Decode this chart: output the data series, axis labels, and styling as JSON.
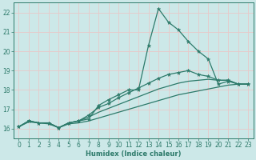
{
  "title": "",
  "xlabel": "Humidex (Indice chaleur)",
  "ylabel": "",
  "bg_color": "#cce8e8",
  "line_color": "#2d7a6a",
  "grid_color": "#e8f5f5",
  "xlim": [
    -0.5,
    23.5
  ],
  "ylim": [
    15.5,
    22.5
  ],
  "xticks": [
    0,
    1,
    2,
    3,
    4,
    5,
    6,
    7,
    8,
    9,
    10,
    11,
    12,
    13,
    14,
    15,
    16,
    17,
    18,
    19,
    20,
    21,
    22,
    23
  ],
  "yticks": [
    16,
    17,
    18,
    19,
    20,
    21,
    22
  ],
  "lines": [
    {
      "x": [
        0,
        1,
        2,
        3,
        4,
        5,
        6,
        7,
        8,
        9,
        10,
        11,
        12,
        13,
        14,
        15,
        16,
        17,
        18,
        19,
        20,
        21,
        22,
        23
      ],
      "y": [
        16.1,
        16.4,
        16.3,
        16.3,
        16.05,
        16.3,
        16.4,
        16.5,
        17.2,
        17.5,
        17.75,
        18.0,
        18.0,
        20.3,
        22.2,
        21.5,
        21.1,
        20.5,
        20.0,
        19.6,
        18.3,
        18.45,
        18.3,
        18.3
      ],
      "marker": true
    },
    {
      "x": [
        0,
        1,
        2,
        3,
        4,
        5,
        6,
        7,
        8,
        9,
        10,
        11,
        12,
        13,
        14,
        15,
        16,
        17,
        18,
        19,
        20,
        21,
        22,
        23
      ],
      "y": [
        16.1,
        16.4,
        16.3,
        16.3,
        16.05,
        16.3,
        16.4,
        16.7,
        17.1,
        17.3,
        17.6,
        17.85,
        18.1,
        18.35,
        18.6,
        18.8,
        18.9,
        19.0,
        18.8,
        18.7,
        18.5,
        18.5,
        18.3,
        18.3
      ],
      "marker": true
    },
    {
      "x": [
        0,
        1,
        2,
        3,
        4,
        5,
        6,
        7,
        8,
        9,
        10,
        11,
        12,
        13,
        14,
        15,
        16,
        17,
        18,
        19,
        20,
        21,
        22,
        23
      ],
      "y": [
        16.1,
        16.4,
        16.3,
        16.3,
        16.05,
        16.3,
        16.4,
        16.6,
        16.85,
        17.05,
        17.25,
        17.45,
        17.65,
        17.85,
        18.05,
        18.2,
        18.35,
        18.45,
        18.5,
        18.55,
        18.5,
        18.5,
        18.3,
        18.3
      ],
      "marker": false
    },
    {
      "x": [
        0,
        1,
        2,
        3,
        4,
        5,
        6,
        7,
        8,
        9,
        10,
        11,
        12,
        13,
        14,
        15,
        16,
        17,
        18,
        19,
        20,
        21,
        22,
        23
      ],
      "y": [
        16.1,
        16.35,
        16.3,
        16.25,
        16.05,
        16.25,
        16.3,
        16.4,
        16.55,
        16.7,
        16.85,
        17.0,
        17.15,
        17.3,
        17.45,
        17.6,
        17.75,
        17.85,
        17.95,
        18.05,
        18.15,
        18.25,
        18.3,
        18.3
      ],
      "marker": false
    }
  ]
}
